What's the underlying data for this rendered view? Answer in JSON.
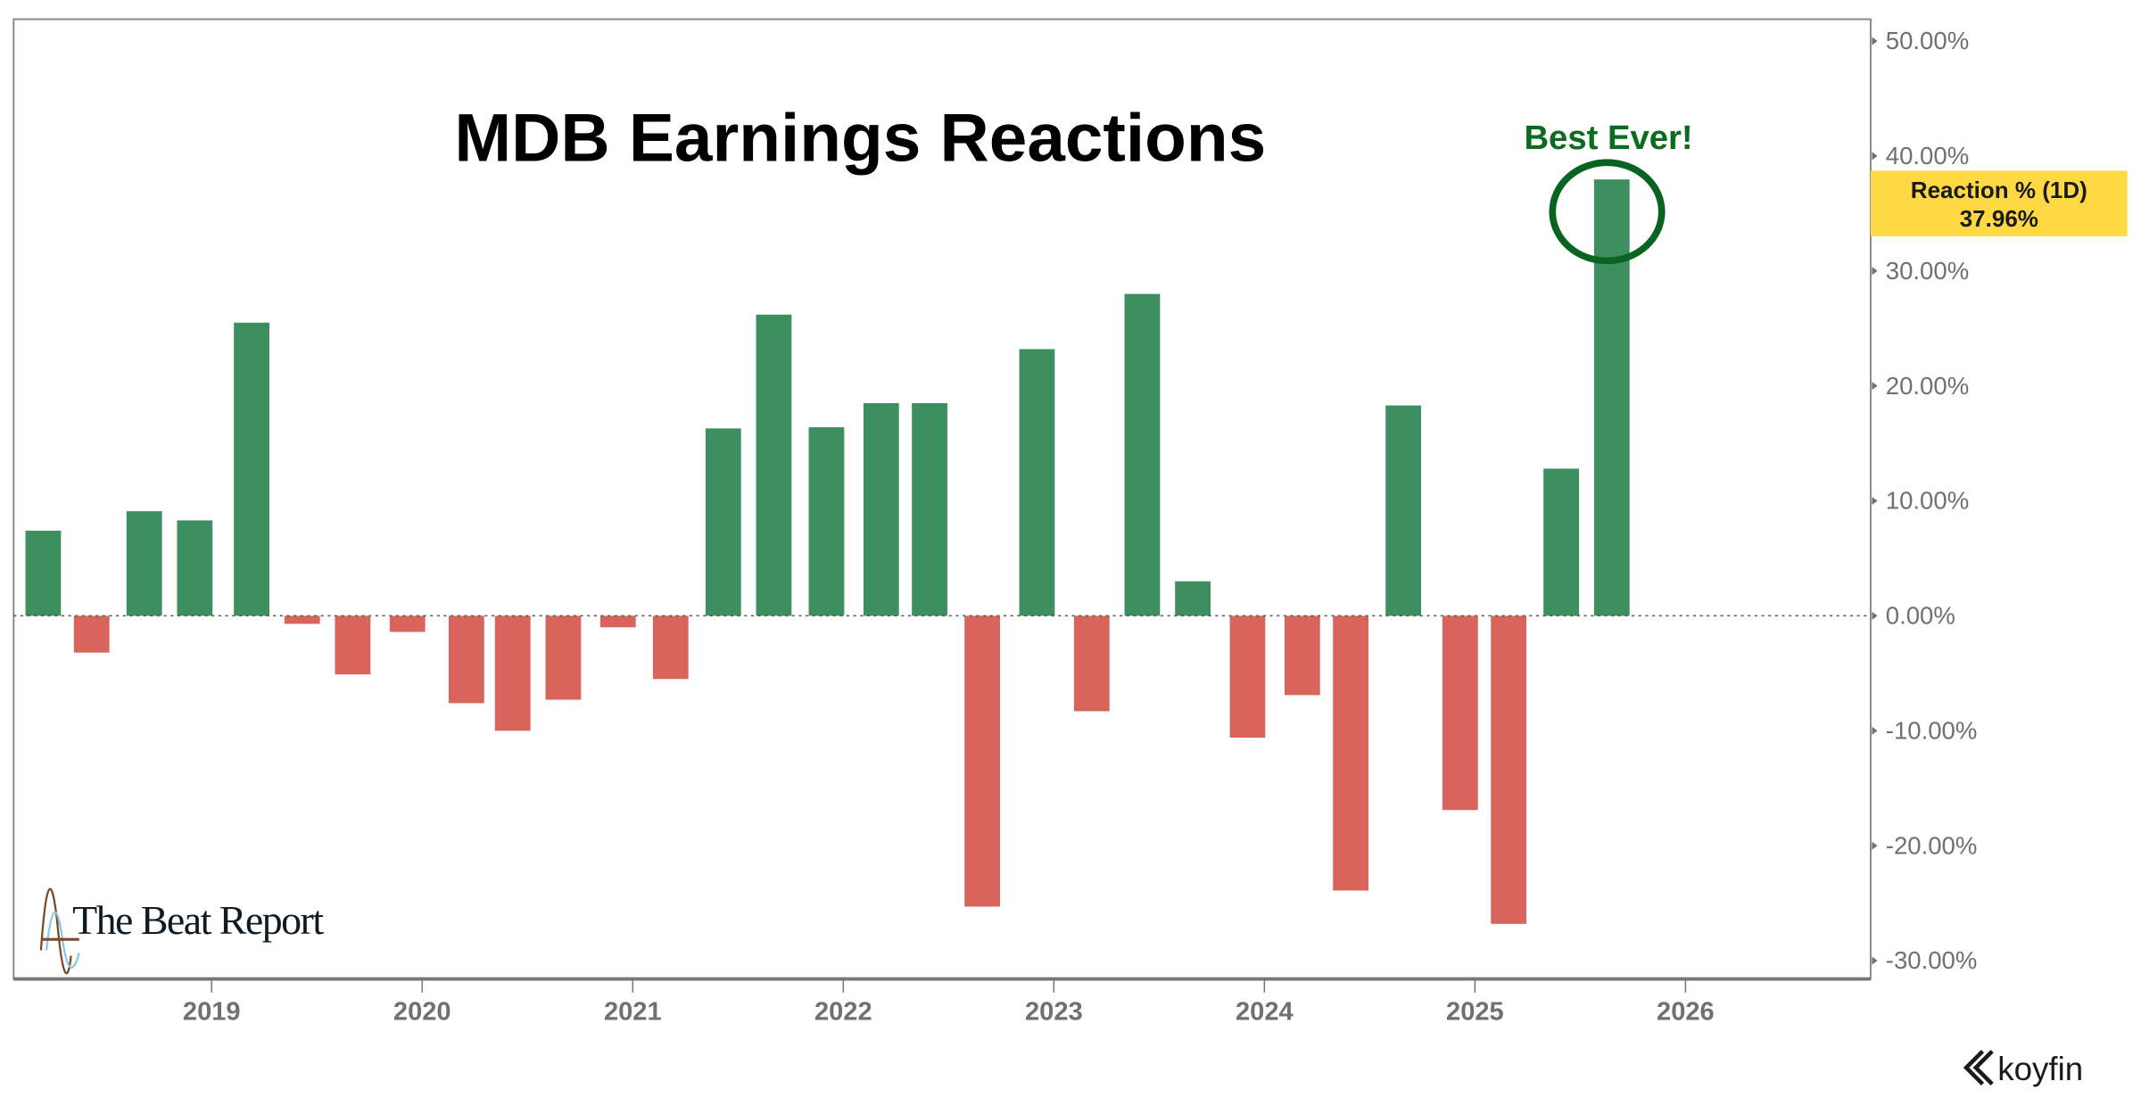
{
  "chart_data": {
    "type": "bar",
    "title": "MDB Earnings Reactions",
    "xlabel": "",
    "ylabel": "Reaction % (1D)",
    "ylim": [
      -30,
      50
    ],
    "xlim": [
      2018.05,
      2026.85
    ],
    "grid": false,
    "zero_line": "dotted",
    "y_ticks": [
      "50.00%",
      "40.00%",
      "30.00%",
      "20.00%",
      "10.00%",
      "0.00%",
      "-10.00%",
      "-20.00%",
      "-30.00%"
    ],
    "y_tick_values": [
      50,
      40,
      30,
      20,
      10,
      0,
      -10,
      -20,
      -30
    ],
    "x_ticks": [
      "2019",
      "2020",
      "2021",
      "2022",
      "2023",
      "2024",
      "2025",
      "2026"
    ],
    "x_tick_values": [
      2019,
      2020,
      2021,
      2022,
      2023,
      2024,
      2025,
      2026
    ],
    "x": [
      2018.2,
      2018.43,
      2018.68,
      2018.92,
      2019.19,
      2019.43,
      2019.67,
      2019.93,
      2020.21,
      2020.43,
      2020.67,
      2020.93,
      2021.18,
      2021.43,
      2021.67,
      2021.92,
      2022.18,
      2022.41,
      2022.66,
      2022.92,
      2023.18,
      2023.42,
      2023.66,
      2023.92,
      2024.18,
      2024.41,
      2024.66,
      2024.93,
      2025.16,
      2025.41,
      2025.65
    ],
    "values": [
      7.4,
      -3.2,
      9.1,
      8.3,
      25.5,
      -0.7,
      -5.1,
      -1.4,
      -7.6,
      -10.0,
      -7.3,
      -1.0,
      -5.5,
      16.3,
      26.2,
      16.4,
      18.5,
      18.5,
      -25.3,
      23.2,
      -8.3,
      28.0,
      3.0,
      -10.6,
      -6.9,
      -23.9,
      18.3,
      -16.9,
      -26.8,
      12.8,
      37.96
    ],
    "colors": {
      "positive": "#3d8f5f",
      "negative": "#d9645c"
    },
    "annotation": {
      "text": "Best Ever!",
      "color": "#0b6b1f"
    },
    "last_value_label": {
      "name": "Reaction % (1D)",
      "value": "37.96%",
      "color": "#ffd944"
    }
  },
  "branding": {
    "logo": "The Beat Report",
    "source": "koyfin"
  }
}
